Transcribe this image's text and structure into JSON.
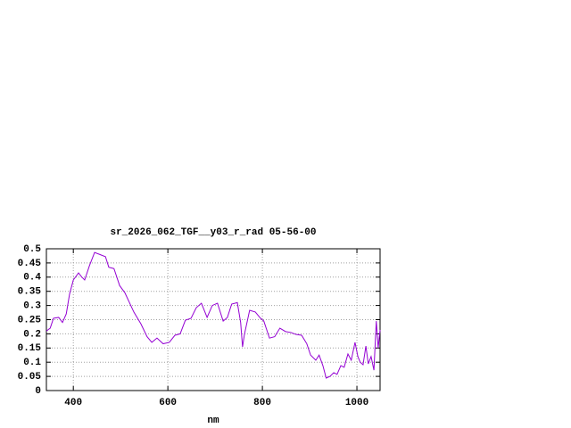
{
  "chart_data": {
    "type": "line",
    "title": "sr_2026_062_TGF__y03_r_rad 05-56-00",
    "xlabel": "nm",
    "x": [
      343,
      351,
      358,
      369,
      377,
      385,
      392,
      400,
      411,
      418,
      424,
      434,
      445,
      456,
      468,
      475,
      486,
      498,
      509,
      528,
      543,
      556,
      566,
      577,
      590,
      603,
      615,
      626,
      637,
      649,
      660,
      671,
      683,
      694,
      705,
      717,
      726,
      735,
      747,
      754,
      758,
      762,
      773,
      785,
      796,
      803,
      815,
      826,
      837,
      849,
      860,
      871,
      883,
      894,
      902,
      913,
      920,
      928,
      935,
      943,
      951,
      958,
      966,
      973,
      981,
      988,
      996,
      1002,
      1007,
      1013,
      1019,
      1024,
      1030,
      1036,
      1041,
      1045,
      1049
    ],
    "values": [
      0.21,
      0.22,
      0.255,
      0.258,
      0.24,
      0.27,
      0.34,
      0.39,
      0.415,
      0.4,
      0.39,
      0.44,
      0.487,
      0.48,
      0.472,
      0.435,
      0.43,
      0.37,
      0.345,
      0.277,
      0.235,
      0.19,
      0.17,
      0.185,
      0.165,
      0.17,
      0.195,
      0.2,
      0.248,
      0.255,
      0.292,
      0.308,
      0.258,
      0.3,
      0.308,
      0.245,
      0.258,
      0.305,
      0.31,
      0.24,
      0.154,
      0.198,
      0.283,
      0.277,
      0.255,
      0.245,
      0.185,
      0.19,
      0.22,
      0.208,
      0.205,
      0.198,
      0.195,
      0.165,
      0.125,
      0.107,
      0.125,
      0.088,
      0.044,
      0.05,
      0.063,
      0.057,
      0.088,
      0.082,
      0.129,
      0.107,
      0.17,
      0.12,
      0.1,
      0.091,
      0.157,
      0.094,
      0.12,
      0.072,
      0.245,
      0.15,
      0.214
    ],
    "color": "#9400d3",
    "xlim": [
      343,
      1049
    ],
    "ylim": [
      0,
      0.5
    ],
    "xticks": [
      400,
      600,
      800,
      1000
    ],
    "yticks": [
      0,
      0.05,
      0.1,
      0.15,
      0.2,
      0.25,
      0.3,
      0.35,
      0.4,
      0.45,
      0.5
    ],
    "grid": true
  }
}
